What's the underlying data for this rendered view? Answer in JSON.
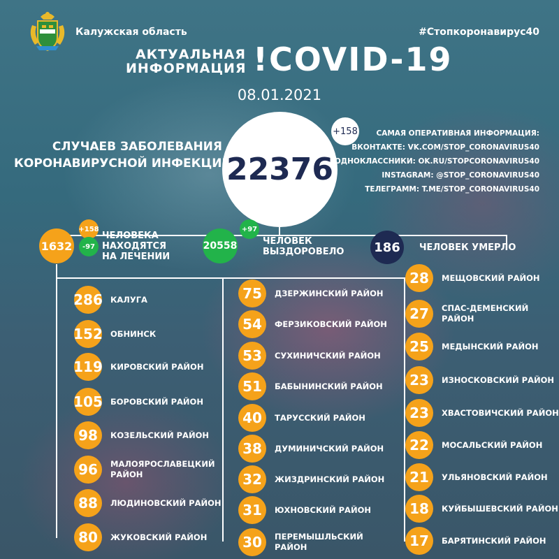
{
  "header": {
    "region": "Калужская область",
    "hashtag": "#Стопкоронавирус40",
    "actual_line1": "АКТУАЛЬНАЯ",
    "actual_line2": "ИНФОРМАЦИЯ",
    "title": "!COVID-19",
    "date": "08.01.2021"
  },
  "cases": {
    "label_line1": "СЛУЧАЕВ ЗАБОЛЕВАНИЯ",
    "label_line2": "КОРОНАВИРУСНОЙ ИНФЕКЦИЕЙ",
    "total": "22376",
    "delta": "+158"
  },
  "info": {
    "lines": [
      "САМАЯ ОПЕРАТИВНАЯ ИНФОРМАЦИЯ:",
      "ВКОНТАКТЕ: VK.COM/STOP_CORONAVIRUS40",
      "ОДНОКЛАССНИКИ: OK.RU/STOPCORONAVIRUS40",
      "INSTAGRAM: @STOP_CORONAVIRUS40",
      "ТЕЛЕГРАММ: T.ME/STOP_CORONAVIRUS40"
    ]
  },
  "treatment": {
    "value": "1632",
    "plus": "+158",
    "minus": "-97",
    "label_line1": "ЧЕЛОВЕКА",
    "label_line2": "НАХОДЯТСЯ",
    "label_line3": "НА ЛЕЧЕНИИ"
  },
  "recovered": {
    "value": "20558",
    "plus": "+97",
    "label_line1": "ЧЕЛОВЕК",
    "label_line2": "ВЫЗДОРОВЕЛО"
  },
  "died": {
    "value": "186",
    "label": "ЧЕЛОВЕК УМЕРЛО"
  },
  "colors": {
    "orange": "#f5a21a",
    "green": "#22b34a",
    "navy": "#1e2a52"
  },
  "districts": {
    "col1": [
      {
        "value": "286",
        "name": "КАЛУГА",
        "name2": ""
      },
      {
        "value": "152",
        "name": "ОБНИНСК",
        "name2": ""
      },
      {
        "value": "119",
        "name": "КИРОВСКИЙ РАЙОН",
        "name2": ""
      },
      {
        "value": "105",
        "name": "БОРОВСКИЙ РАЙОН",
        "name2": ""
      },
      {
        "value": "98",
        "name": "КОЗЕЛЬСКИЙ РАЙОН",
        "name2": ""
      },
      {
        "value": "96",
        "name": "МАЛОЯРОСЛАВЕЦКИЙ",
        "name2": "РАЙОН"
      },
      {
        "value": "88",
        "name": "ЛЮДИНОВСКИЙ РАЙОН",
        "name2": ""
      },
      {
        "value": "80",
        "name": "ЖУКОВСКИЙ РАЙОН",
        "name2": ""
      }
    ],
    "col2": [
      {
        "value": "75",
        "name": "ДЗЕРЖИНСКИЙ РАЙОН",
        "name2": ""
      },
      {
        "value": "54",
        "name": "ФЕРЗИКОВСКИЙ РАЙОН",
        "name2": ""
      },
      {
        "value": "53",
        "name": "СУХИНИЧСКИЙ РАЙОН",
        "name2": ""
      },
      {
        "value": "51",
        "name": "БАБЫНИНСКИЙ РАЙОН",
        "name2": ""
      },
      {
        "value": "40",
        "name": "ТАРУССКИЙ РАЙОН",
        "name2": ""
      },
      {
        "value": "38",
        "name": "ДУМИНИЧСКИЙ РАЙОН",
        "name2": ""
      },
      {
        "value": "32",
        "name": "ЖИЗДРИНСКИЙ РАЙОН",
        "name2": ""
      },
      {
        "value": "31",
        "name": "ЮХНОВСКИЙ РАЙОН",
        "name2": ""
      },
      {
        "value": "30",
        "name": "ПЕРЕМЫШЛЬСКИЙ",
        "name2": "РАЙОН"
      }
    ],
    "col3": [
      {
        "value": "28",
        "name": "МЕЩОВСКИЙ РАЙОН",
        "name2": ""
      },
      {
        "value": "27",
        "name": "СПАС-ДЕМЕНСКИЙ",
        "name2": "РАЙОН"
      },
      {
        "value": "25",
        "name": "МЕДЫНСКИЙ РАЙОН",
        "name2": ""
      },
      {
        "value": "23",
        "name": "ИЗНОСКОВСКИЙ РАЙОН",
        "name2": ""
      },
      {
        "value": "23",
        "name": "ХВАСТОВИЧСКИЙ РАЙОН",
        "name2": ""
      },
      {
        "value": "22",
        "name": "МОСАЛЬСКИЙ РАЙОН",
        "name2": ""
      },
      {
        "value": "21",
        "name": "УЛЬЯНОВСКИЙ РАЙОН",
        "name2": ""
      },
      {
        "value": "18",
        "name": "КУЙБЫШЕВСКИЙ РАЙОН",
        "name2": ""
      },
      {
        "value": "17",
        "name": "БАРЯТИНСКИЙ РАЙОН",
        "name2": ""
      }
    ]
  }
}
